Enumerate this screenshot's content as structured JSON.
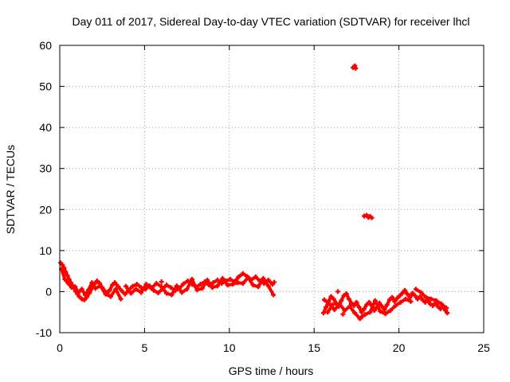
{
  "chart_data": {
    "type": "scatter",
    "title": "Day 011 of 2017, Sidereal Day-to-day VTEC variation (SDTVAR) for receiver lhcl",
    "xlabel": "GPS time / hours",
    "ylabel": "SDTVAR / TECUs",
    "xlim": [
      0,
      25
    ],
    "ylim": [
      -10,
      60
    ],
    "xticks": [
      0,
      5,
      10,
      15,
      20,
      25
    ],
    "yticks": [
      -10,
      0,
      10,
      20,
      30,
      40,
      50,
      60
    ],
    "grid": true,
    "marker_color": "#ff0000",
    "series": [
      {
        "name": "SDTVAR",
        "points": [
          [
            0.05,
            7.0
          ],
          [
            0.15,
            6.5
          ],
          [
            0.25,
            5.8
          ],
          [
            0.35,
            4.8
          ],
          [
            0.45,
            3.9
          ],
          [
            0.55,
            3.0
          ],
          [
            0.65,
            2.2
          ],
          [
            0.75,
            1.5
          ],
          [
            0.85,
            0.8
          ],
          [
            0.95,
            0.0
          ],
          [
            1.05,
            -0.6
          ],
          [
            1.15,
            -1.2
          ],
          [
            1.3,
            -1.8
          ],
          [
            1.45,
            -2.0
          ],
          [
            1.6,
            -1.3
          ],
          [
            1.75,
            -0.3
          ],
          [
            1.9,
            0.8
          ],
          [
            2.05,
            1.9
          ],
          [
            2.2,
            2.6
          ],
          [
            2.35,
            2.0
          ],
          [
            2.5,
            1.0
          ],
          [
            2.65,
            0.2
          ],
          [
            2.8,
            -0.4
          ],
          [
            2.95,
            0.4
          ],
          [
            3.1,
            1.6
          ],
          [
            3.25,
            2.2
          ],
          [
            3.45,
            1.2
          ],
          [
            3.65,
            0.2
          ],
          [
            3.85,
            -0.6
          ],
          [
            4.05,
            0.3
          ],
          [
            4.3,
            1.3
          ],
          [
            4.55,
            1.8
          ],
          [
            4.8,
            1.0
          ],
          [
            5.05,
            0.6
          ],
          [
            5.3,
            1.4
          ],
          [
            5.55,
            0.3
          ],
          [
            5.8,
            -0.3
          ],
          [
            6.05,
            0.6
          ],
          [
            6.3,
            1.6
          ],
          [
            6.55,
            1.0
          ],
          [
            6.8,
            0.2
          ],
          [
            7.05,
            0.8
          ],
          [
            7.3,
            1.9
          ],
          [
            7.55,
            2.6
          ],
          [
            7.8,
            1.8
          ],
          [
            8.05,
            1.1
          ],
          [
            8.3,
            1.8
          ],
          [
            8.55,
            2.4
          ],
          [
            8.8,
            1.6
          ],
          [
            9.05,
            2.2
          ],
          [
            9.3,
            2.8
          ],
          [
            9.55,
            2.0
          ],
          [
            9.8,
            2.6
          ],
          [
            10.05,
            3.0
          ],
          [
            10.3,
            2.4
          ],
          [
            10.55,
            3.6
          ],
          [
            10.8,
            4.4
          ],
          [
            11.05,
            3.7
          ],
          [
            11.3,
            2.9
          ],
          [
            11.55,
            3.6
          ],
          [
            11.8,
            2.6
          ],
          [
            12.05,
            2.0
          ],
          [
            12.3,
            2.8
          ],
          [
            12.55,
            1.8
          ],
          [
            0.1,
            5.5
          ],
          [
            0.3,
            3.0
          ],
          [
            0.5,
            2.0
          ],
          [
            0.7,
            1.0
          ],
          [
            0.9,
            1.2
          ],
          [
            1.1,
            -0.2
          ],
          [
            1.3,
            0.6
          ],
          [
            1.5,
            -0.8
          ],
          [
            1.7,
            0.5
          ],
          [
            1.9,
            2.2
          ],
          [
            2.1,
            0.8
          ],
          [
            2.4,
            1.4
          ],
          [
            2.7,
            -0.6
          ],
          [
            3.0,
            -1.2
          ],
          [
            3.3,
            0.6
          ],
          [
            3.6,
            -1.8
          ],
          [
            3.9,
            1.3
          ],
          [
            4.2,
            -0.4
          ],
          [
            4.5,
            0.6
          ],
          [
            4.8,
            -0.2
          ],
          [
            5.1,
            1.8
          ],
          [
            5.4,
            0.8
          ],
          [
            5.7,
            2.0
          ],
          [
            6.0,
            1.2
          ],
          [
            6.3,
            -0.4
          ],
          [
            6.6,
            -0.8
          ],
          [
            6.9,
            1.4
          ],
          [
            7.2,
            -0.2
          ],
          [
            7.5,
            0.6
          ],
          [
            7.8,
            3.0
          ],
          [
            8.1,
            0.4
          ],
          [
            8.4,
            0.8
          ],
          [
            8.7,
            2.8
          ],
          [
            9.0,
            1.0
          ],
          [
            9.3,
            1.4
          ],
          [
            9.6,
            3.2
          ],
          [
            9.9,
            1.6
          ],
          [
            10.2,
            1.8
          ],
          [
            10.5,
            2.2
          ],
          [
            10.8,
            2.0
          ],
          [
            11.1,
            3.4
          ],
          [
            11.4,
            1.6
          ],
          [
            11.7,
            1.2
          ],
          [
            12.0,
            3.2
          ],
          [
            12.3,
            1.4
          ],
          [
            12.6,
            -0.8
          ],
          [
            12.65,
            2.3
          ],
          [
            6.0,
            2.4
          ],
          [
            15.55,
            -5.2
          ],
          [
            15.7,
            -3.8
          ],
          [
            15.85,
            -2.4
          ],
          [
            16.0,
            -1.2
          ],
          [
            16.15,
            -1.8
          ],
          [
            16.3,
            -2.8
          ],
          [
            16.45,
            -3.6
          ],
          [
            16.6,
            -2.2
          ],
          [
            16.75,
            -1.0
          ],
          [
            16.9,
            -0.5
          ],
          [
            17.05,
            -1.8
          ],
          [
            17.2,
            -2.8
          ],
          [
            17.35,
            -3.4
          ],
          [
            17.5,
            -2.6
          ],
          [
            17.65,
            -3.8
          ],
          [
            17.8,
            -5.0
          ],
          [
            17.95,
            -4.2
          ],
          [
            18.1,
            -3.2
          ],
          [
            18.25,
            -2.6
          ],
          [
            18.4,
            -3.4
          ],
          [
            18.55,
            -4.6
          ],
          [
            18.7,
            -3.8
          ],
          [
            18.85,
            -2.8
          ],
          [
            19.0,
            -3.6
          ],
          [
            19.15,
            -4.4
          ],
          [
            19.3,
            -3.2
          ],
          [
            19.45,
            -2.0
          ],
          [
            19.6,
            -1.4
          ],
          [
            19.75,
            -2.4
          ],
          [
            19.9,
            -1.6
          ],
          [
            20.05,
            -1.0
          ],
          [
            20.2,
            -0.4
          ],
          [
            20.35,
            0.3
          ],
          [
            20.5,
            -0.6
          ],
          [
            20.65,
            -1.4
          ],
          [
            20.8,
            -0.4
          ],
          [
            20.95,
            -1.0
          ],
          [
            21.1,
            -1.8
          ],
          [
            21.25,
            -1.2
          ],
          [
            21.4,
            -2.0
          ],
          [
            21.55,
            -2.6
          ],
          [
            21.7,
            -2.2
          ],
          [
            21.85,
            -3.0
          ],
          [
            22.0,
            -3.4
          ],
          [
            22.15,
            -2.8
          ],
          [
            22.3,
            -3.6
          ],
          [
            22.45,
            -4.2
          ],
          [
            22.6,
            -3.8
          ],
          [
            22.75,
            -4.6
          ],
          [
            22.85,
            -5.2
          ],
          [
            15.6,
            -2.0
          ],
          [
            15.9,
            -3.0
          ],
          [
            16.2,
            -4.4
          ],
          [
            16.5,
            -3.0
          ],
          [
            16.8,
            -4.6
          ],
          [
            17.1,
            -3.6
          ],
          [
            17.4,
            -5.2
          ],
          [
            17.7,
            -6.6
          ],
          [
            17.85,
            -6.0
          ],
          [
            18.0,
            -5.6
          ],
          [
            18.3,
            -5.0
          ],
          [
            18.6,
            -2.2
          ],
          [
            18.9,
            -4.8
          ],
          [
            19.2,
            -5.4
          ],
          [
            19.5,
            -4.6
          ],
          [
            19.8,
            -3.4
          ],
          [
            20.1,
            -2.6
          ],
          [
            20.4,
            -1.8
          ],
          [
            20.7,
            -2.4
          ],
          [
            21.0,
            0.6
          ],
          [
            21.3,
            -0.2
          ],
          [
            21.6,
            -1.4
          ],
          [
            21.9,
            -1.8
          ],
          [
            22.2,
            -2.2
          ],
          [
            22.5,
            -3.0
          ],
          [
            22.8,
            -4.0
          ],
          [
            15.8,
            -5.0
          ],
          [
            16.1,
            -3.2
          ],
          [
            16.4,
            0.0
          ],
          [
            16.7,
            -5.5
          ],
          [
            17.3,
            54.6
          ],
          [
            17.4,
            55.0
          ],
          [
            17.45,
            54.4
          ],
          [
            17.95,
            18.4
          ],
          [
            18.1,
            18.6
          ],
          [
            18.2,
            18.1
          ],
          [
            18.3,
            18.3
          ],
          [
            18.4,
            18.0
          ]
        ]
      }
    ]
  }
}
